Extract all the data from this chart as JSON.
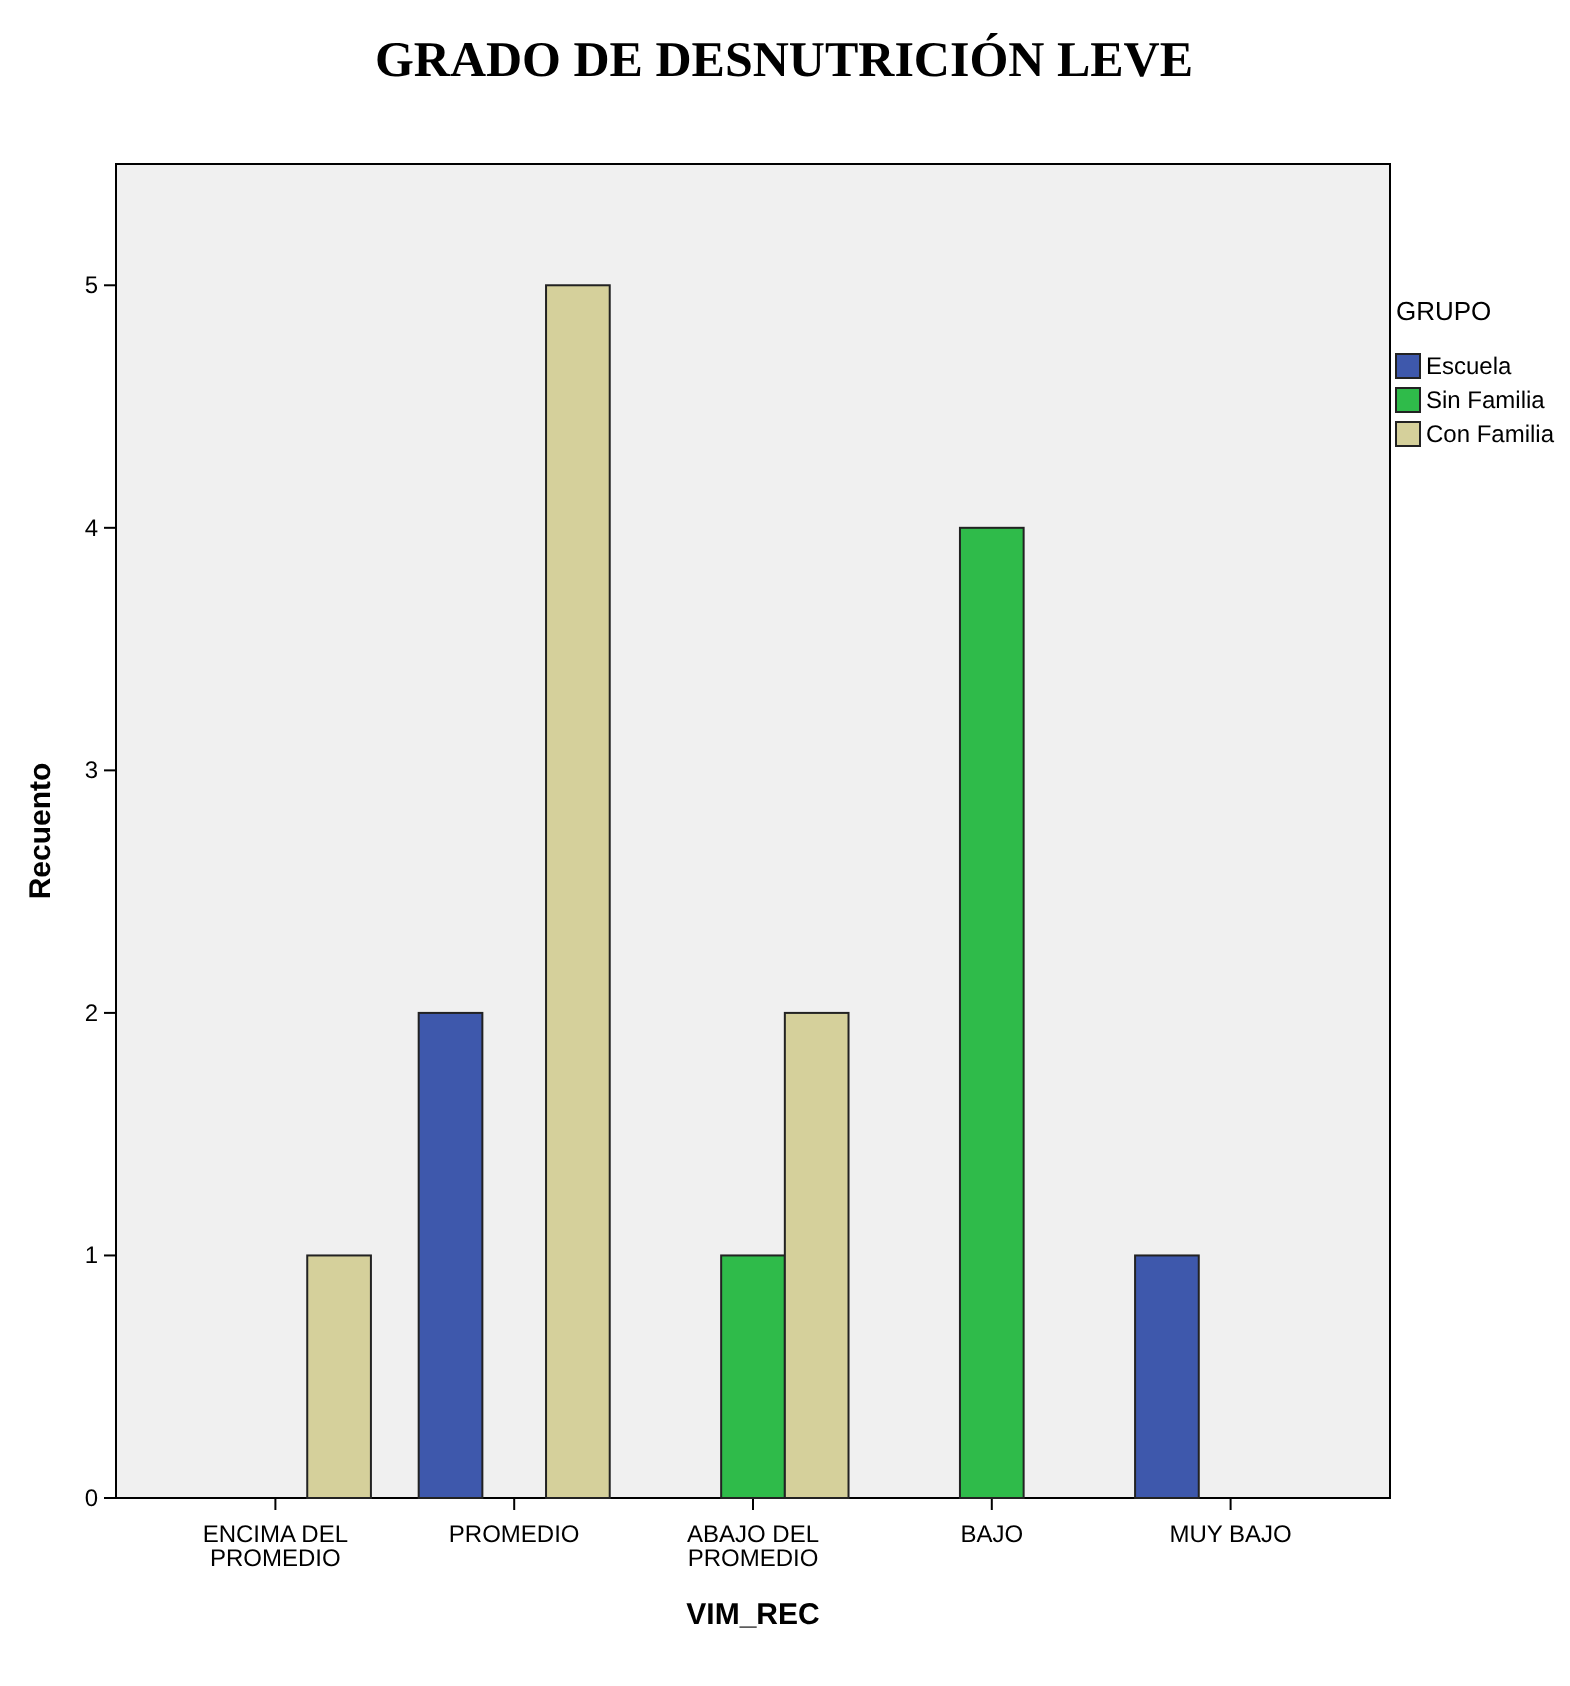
{
  "chart_data": {
    "type": "bar",
    "title": "GRADO DE DESNUTRICIÓN LEVE",
    "xlabel": "VIM_REC",
    "ylabel": "Recuento",
    "legend_title": "GRUPO",
    "categories": [
      "ENCIMA DEL PROMEDIO",
      "PROMEDIO",
      "ABAJO DEL PROMEDIO",
      "BAJO",
      "MUY BAJO"
    ],
    "series": [
      {
        "name": "Escuela",
        "color": "#3e58ac",
        "values": [
          null,
          2,
          null,
          null,
          1
        ]
      },
      {
        "name": "Sin Familia",
        "color": "#2fbb4a",
        "values": [
          null,
          null,
          1,
          4,
          null
        ]
      },
      {
        "name": "Con Familia",
        "color": "#d5d09b",
        "values": [
          1,
          5,
          2,
          null,
          null
        ]
      }
    ],
    "ylim": [
      0,
      5.5
    ],
    "yticks": [
      0,
      1,
      2,
      3,
      4,
      5
    ],
    "grid": false,
    "legend": "top right"
  }
}
